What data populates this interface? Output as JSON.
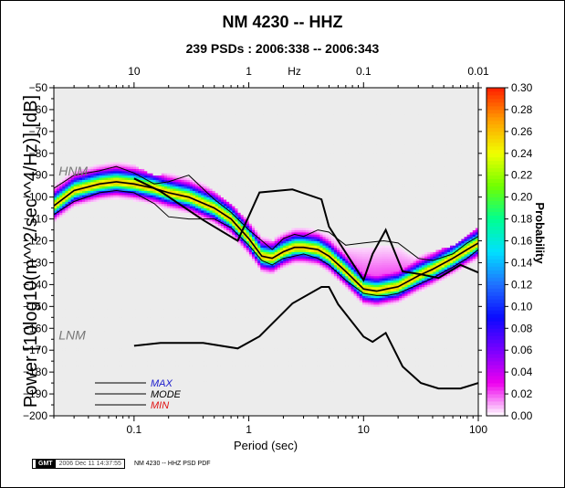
{
  "title": "NM 4230 -- HHZ",
  "subtitle": "239 PSDs : 2006:338 -- 2006:343",
  "footer": {
    "logo": "GMT",
    "timestamp": "2006 Dec 11 14:37:55",
    "caption": "NM 4230 -- HHZ PSD PDF"
  },
  "colors": {
    "max_line": "#000000",
    "mode_line": "#000000",
    "min_line": "#000000",
    "max_text": "#1a1acc",
    "mode_text": "#000000",
    "min_text": "#e01010",
    "nhnm_nlnm": "#000000",
    "model_label": "#777777"
  },
  "chart_data": {
    "type": "heatmap",
    "title": "NM 4230 -- HHZ",
    "subtitle": "239 PSDs : 2006:338 -- 2006:343",
    "xlabel": "Period (sec)",
    "ylabel": "Power [10log10(m**2/sec**4/Hz)] [dB]",
    "ylabel_display": "Power [10log10(m^^2/sec^^4/Hz)] [dB]",
    "x_scale": "log",
    "xlim": [
      0.02,
      100
    ],
    "ylim": [
      -200,
      -50
    ],
    "x_ticks": [
      {
        "value": 0.1,
        "label": "0.1"
      },
      {
        "value": 1,
        "label": "1"
      },
      {
        "value": 10,
        "label": "10"
      },
      {
        "value": 100,
        "label": "100"
      }
    ],
    "y_ticks": [
      -50,
      -60,
      -70,
      -80,
      -90,
      -100,
      -110,
      -120,
      -130,
      -140,
      -150,
      -160,
      -170,
      -180,
      -190,
      -200
    ],
    "top_axis": {
      "label": "Hz",
      "label_at_period": 2.5,
      "ticks": [
        {
          "period": 0.1,
          "label": "10"
        },
        {
          "period": 1,
          "label": "1"
        },
        {
          "period": 10,
          "label": "0.1"
        },
        {
          "period": 100,
          "label": "0.01"
        }
      ]
    },
    "colorbar": {
      "label": "Probability",
      "range": [
        0.0,
        0.3
      ],
      "ticks": [
        "0.00",
        "0.02",
        "0.04",
        "0.06",
        "0.08",
        "0.10",
        "0.12",
        "0.14",
        "0.16",
        "0.18",
        "0.20",
        "0.22",
        "0.24",
        "0.26",
        "0.28",
        "0.30"
      ],
      "colormap": [
        "#ffffff",
        "#ee00ee",
        "#7a00ff",
        "#0a0aff",
        "#2070ff",
        "#00e0ff",
        "#00ff90",
        "#70ff00",
        "#f0ff00",
        "#ffa000",
        "#ff2000"
      ]
    },
    "models": [
      {
        "name": "NHNM",
        "label": "HNM",
        "points": [
          [
            0.1,
            -91.5
          ],
          [
            0.17,
            -97.4
          ],
          [
            0.4,
            -110.5
          ],
          [
            0.8,
            -120
          ],
          [
            1.24,
            -97.9
          ],
          [
            2.4,
            -96.5
          ],
          [
            4.3,
            -101
          ],
          [
            5,
            -113.5
          ],
          [
            6,
            -120
          ],
          [
            10,
            -138
          ],
          [
            12,
            -126
          ],
          [
            15.6,
            -115
          ],
          [
            21.9,
            -134
          ],
          [
            31.6,
            -135.3
          ],
          [
            45,
            -137
          ],
          [
            70,
            -131
          ],
          [
            100,
            -134.5
          ]
        ]
      },
      {
        "name": "NLNM",
        "label": "LNM",
        "points": [
          [
            0.1,
            -168
          ],
          [
            0.17,
            -166.7
          ],
          [
            0.4,
            -166.7
          ],
          [
            0.8,
            -169.2
          ],
          [
            1.24,
            -163.7
          ],
          [
            2.4,
            -148.6
          ],
          [
            4.3,
            -141.1
          ],
          [
            5,
            -141.1
          ],
          [
            6,
            -149
          ],
          [
            10,
            -163.8
          ],
          [
            12,
            -166.2
          ],
          [
            15.6,
            -162.1
          ],
          [
            21.9,
            -177.5
          ],
          [
            31.6,
            -185
          ],
          [
            45,
            -187.5
          ],
          [
            70,
            -187.5
          ],
          [
            100,
            -185
          ]
        ]
      }
    ],
    "model_labels": [
      {
        "label": "HNM",
        "period": 0.022,
        "db": -88
      },
      {
        "label": "LNM",
        "period": 0.022,
        "db": -163
      }
    ],
    "series": [
      {
        "name": "MODE",
        "points": [
          [
            0.02,
            -104
          ],
          [
            0.03,
            -97
          ],
          [
            0.05,
            -94
          ],
          [
            0.07,
            -93
          ],
          [
            0.1,
            -94
          ],
          [
            0.15,
            -96
          ],
          [
            0.2,
            -98
          ],
          [
            0.3,
            -100
          ],
          [
            0.5,
            -105
          ],
          [
            0.7,
            -110
          ],
          [
            1,
            -119
          ],
          [
            1.3,
            -127
          ],
          [
            1.6,
            -128
          ],
          [
            2,
            -125
          ],
          [
            2.5,
            -123
          ],
          [
            3,
            -123
          ],
          [
            4,
            -124
          ],
          [
            5,
            -127
          ],
          [
            7,
            -134
          ],
          [
            10,
            -142
          ],
          [
            13,
            -143
          ],
          [
            16,
            -142
          ],
          [
            20,
            -141
          ],
          [
            30,
            -136
          ],
          [
            40,
            -133
          ],
          [
            60,
            -128
          ],
          [
            80,
            -124
          ],
          [
            100,
            -121
          ]
        ]
      },
      {
        "name": "MAX",
        "points": [
          [
            0.02,
            -96
          ],
          [
            0.03,
            -90
          ],
          [
            0.05,
            -88
          ],
          [
            0.07,
            -86
          ],
          [
            0.1,
            -89
          ],
          [
            0.15,
            -94
          ],
          [
            0.2,
            -93
          ],
          [
            0.3,
            -90
          ],
          [
            0.5,
            -101
          ],
          [
            0.7,
            -107
          ],
          [
            1,
            -115
          ],
          [
            1.3,
            -120
          ],
          [
            1.6,
            -124
          ],
          [
            2,
            -119
          ],
          [
            2.5,
            -117
          ],
          [
            3,
            -118
          ],
          [
            4,
            -115
          ],
          [
            5,
            -116
          ],
          [
            7,
            -122
          ],
          [
            10,
            -121
          ],
          [
            15,
            -120
          ],
          [
            20,
            -121
          ],
          [
            30,
            -128
          ],
          [
            40,
            -129
          ],
          [
            60,
            -126
          ],
          [
            80,
            -121
          ],
          [
            100,
            -118
          ]
        ]
      },
      {
        "name": "MIN",
        "points": [
          [
            0.02,
            -108
          ],
          [
            0.03,
            -102
          ],
          [
            0.05,
            -98
          ],
          [
            0.07,
            -97
          ],
          [
            0.1,
            -98
          ],
          [
            0.15,
            -103
          ],
          [
            0.2,
            -109
          ],
          [
            0.3,
            -110
          ],
          [
            0.5,
            -110
          ],
          [
            0.7,
            -114
          ],
          [
            1,
            -122
          ],
          [
            1.3,
            -129
          ],
          [
            1.6,
            -131
          ],
          [
            2,
            -128
          ],
          [
            2.5,
            -127
          ],
          [
            3,
            -126
          ],
          [
            4,
            -128
          ],
          [
            5,
            -131
          ],
          [
            7,
            -138
          ],
          [
            10,
            -144
          ],
          [
            13,
            -145
          ],
          [
            16,
            -145
          ],
          [
            20,
            -144
          ],
          [
            30,
            -140
          ],
          [
            40,
            -137
          ],
          [
            60,
            -132
          ],
          [
            80,
            -128
          ],
          [
            100,
            -124
          ]
        ]
      }
    ],
    "legend": [
      {
        "label": "MAX",
        "color": "#1a1acc"
      },
      {
        "label": "MODE",
        "color": "#000000"
      },
      {
        "label": "MIN",
        "color": "#e01010"
      }
    ]
  }
}
